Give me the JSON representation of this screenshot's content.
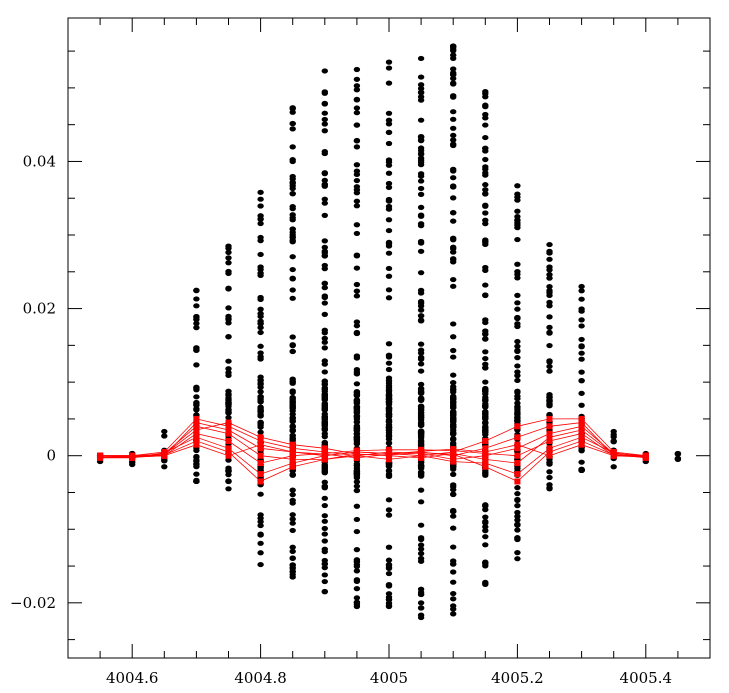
{
  "chart_data": {
    "type": "scatter",
    "title": "",
    "xlabel": "",
    "ylabel": "",
    "xlim": [
      4004.5,
      4005.5
    ],
    "ylim": [
      -0.0275,
      0.0595
    ],
    "grid": false,
    "x_ticks": [
      {
        "value": 4004.6,
        "label": "4004.6"
      },
      {
        "value": 4004.8,
        "label": "4004.8"
      },
      {
        "value": 4005.0,
        "label": "4005"
      },
      {
        "value": 4005.2,
        "label": "4005.2"
      },
      {
        "value": 4005.4,
        "label": "4005.4"
      }
    ],
    "y_ticks": [
      {
        "value": -0.02,
        "label": "−0.02"
      },
      {
        "value": 0.0,
        "label": "0"
      },
      {
        "value": 0.02,
        "label": "0.02"
      },
      {
        "value": 0.04,
        "label": "0.04"
      }
    ],
    "x_minor_step": 0.05,
    "y_minor_step": 0.005,
    "scatter_color": "#000000",
    "line_color": "#ff0000",
    "black_points": {
      "x": [
        4004.55,
        4004.6,
        4004.65,
        4004.7,
        4004.75,
        4004.8,
        4004.85,
        4004.9,
        4004.95,
        4005.0,
        4005.05,
        4005.1,
        4005.15,
        4005.2,
        4005.25,
        4005.3,
        4005.35,
        4005.4,
        4005.45
      ],
      "ymin": [
        -0.0008,
        -0.0012,
        -0.0015,
        -0.0035,
        -0.0045,
        -0.0148,
        -0.0165,
        -0.0185,
        -0.0205,
        -0.0205,
        -0.022,
        -0.0215,
        -0.0175,
        -0.014,
        -0.0045,
        -0.002,
        -0.0015,
        -0.0008,
        -0.0005
      ],
      "ymax": [
        0.0,
        0.0003,
        0.0033,
        0.0225,
        0.0285,
        0.0358,
        0.0473,
        0.0523,
        0.0525,
        0.0535,
        0.054,
        0.0557,
        0.0495,
        0.0367,
        0.0287,
        0.023,
        0.0033,
        0.0003,
        0.0003
      ]
    },
    "series": [
      {
        "values": [
          0.0,
          0.0,
          0.0005,
          0.005,
          0.004,
          0.002,
          0.001,
          0.0005,
          0.0,
          -0.0005,
          0.0,
          0.0005,
          0.002,
          0.004,
          0.005,
          0.005,
          0.0005,
          0.0
        ]
      },
      {
        "values": [
          0.0,
          -0.0002,
          0.0,
          0.0045,
          0.0035,
          0.001,
          0.0005,
          0.0,
          0.0005,
          0.0003,
          0.0005,
          0.0,
          0.001,
          0.0025,
          0.004,
          0.0045,
          0.0,
          -0.0002
        ]
      },
      {
        "values": [
          -0.0003,
          -0.0003,
          0.0003,
          0.004,
          0.003,
          0.0,
          -0.0005,
          -0.0005,
          0.0,
          0.0005,
          0.0003,
          -0.0005,
          0.0,
          0.001,
          0.003,
          0.004,
          0.0003,
          0.0
        ]
      },
      {
        "values": [
          0.0,
          0.0,
          0.0002,
          0.0035,
          0.0045,
          0.0025,
          0.0015,
          0.001,
          0.0002,
          0.0,
          -0.0003,
          0.0003,
          -0.0005,
          -0.001,
          0.0025,
          0.0035,
          0.0002,
          -0.0003
        ]
      },
      {
        "values": [
          -0.0002,
          -0.0002,
          0.0,
          0.003,
          0.002,
          -0.001,
          0.0,
          0.0003,
          0.0007,
          0.0008,
          0.0008,
          0.0007,
          0.0003,
          0.0,
          0.002,
          0.003,
          0.0,
          0.0
        ]
      },
      {
        "values": [
          0.0,
          -0.0003,
          0.0004,
          0.0025,
          0.001,
          -0.0025,
          -0.001,
          0.0,
          0.0005,
          0.0003,
          0.0,
          -0.0008,
          -0.001,
          -0.0025,
          0.001,
          0.0025,
          0.0004,
          -0.0002
        ]
      },
      {
        "values": [
          0.0,
          0.0,
          0.0001,
          0.002,
          0.0005,
          -0.0035,
          -0.0015,
          -0.0005,
          0.0002,
          0.0001,
          0.0004,
          0.0002,
          -0.0015,
          -0.0035,
          0.0005,
          0.002,
          0.0001,
          0.0
        ]
      },
      {
        "values": [
          -0.0001,
          -0.0001,
          0.0,
          0.0015,
          0.0,
          0.0015,
          0.0005,
          0.0002,
          -0.0003,
          0.0002,
          0.0006,
          0.0009,
          0.0005,
          0.0015,
          0.0,
          0.0015,
          0.0,
          -0.0001
        ]
      }
    ],
    "series_x": [
      4004.55,
      4004.6,
      4004.65,
      4004.7,
      4004.75,
      4004.8,
      4004.85,
      4004.9,
      4004.95,
      4005.0,
      4005.05,
      4005.1,
      4005.15,
      4005.2,
      4005.25,
      4005.3,
      4005.35,
      4005.4
    ]
  }
}
